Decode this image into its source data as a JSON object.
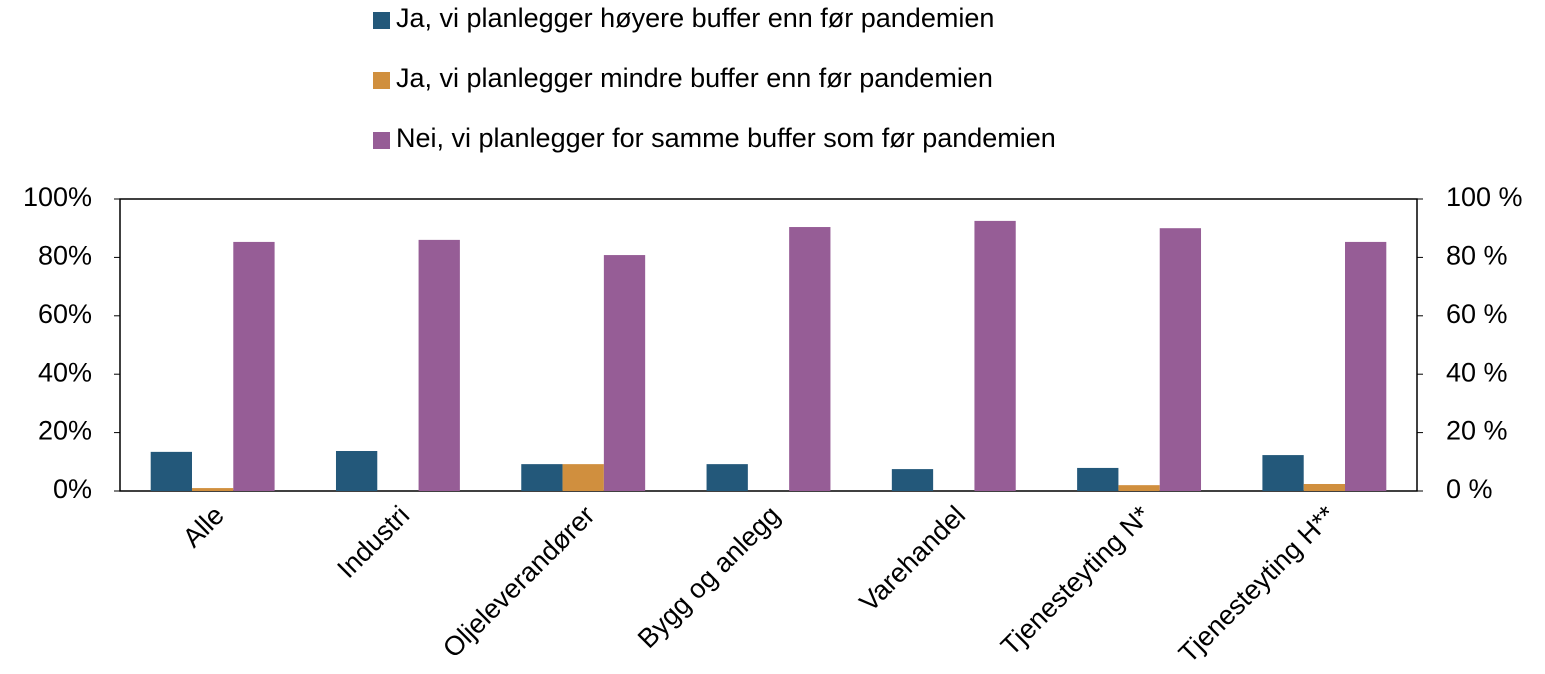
{
  "chart_data": {
    "type": "bar",
    "categories": [
      "Alle",
      "Industri",
      "Oljeleverandører",
      "Bygg og anlegg",
      "Varehandel",
      "Tjenesteyting N*",
      "Tjenesteyting H**"
    ],
    "series": [
      {
        "name": "Ja, vi planlegger høyere buffer enn før pandemien",
        "color": "#23587a",
        "values": [
          13.4,
          13.7,
          9.2,
          9.2,
          7.5,
          7.9,
          12.3
        ]
      },
      {
        "name": "Ja, vi planlegger mindre buffer enn før pandemien",
        "color": "#d08f3e",
        "values": [
          1,
          0,
          9.2,
          0,
          0,
          2,
          2.4
        ]
      },
      {
        "name": "Nei, vi planlegger for samme buffer som før pandemien",
        "color": "#965d96",
        "values": [
          85.3,
          86,
          80.8,
          90.4,
          92.5,
          90,
          85.3
        ]
      }
    ],
    "ylim": [
      0,
      100
    ],
    "yticks": [
      {
        "value": 0,
        "label": "0%"
      },
      {
        "value": 20,
        "label": "20%"
      },
      {
        "value": 40,
        "label": "40%"
      },
      {
        "value": 60,
        "label": "60%"
      },
      {
        "value": 80,
        "label": "80%"
      },
      {
        "value": 100,
        "label": "100%"
      }
    ],
    "y2lim": [
      0,
      100
    ],
    "y2ticks": [
      {
        "value": 0,
        "label": "0 %"
      },
      {
        "value": 20,
        "label": "20 %"
      },
      {
        "value": 40,
        "label": "40 %"
      },
      {
        "value": 60,
        "label": "60 %"
      },
      {
        "value": 80,
        "label": "80 %"
      },
      {
        "value": 100,
        "label": "100 %"
      }
    ],
    "legend": "top",
    "grid": false
  }
}
